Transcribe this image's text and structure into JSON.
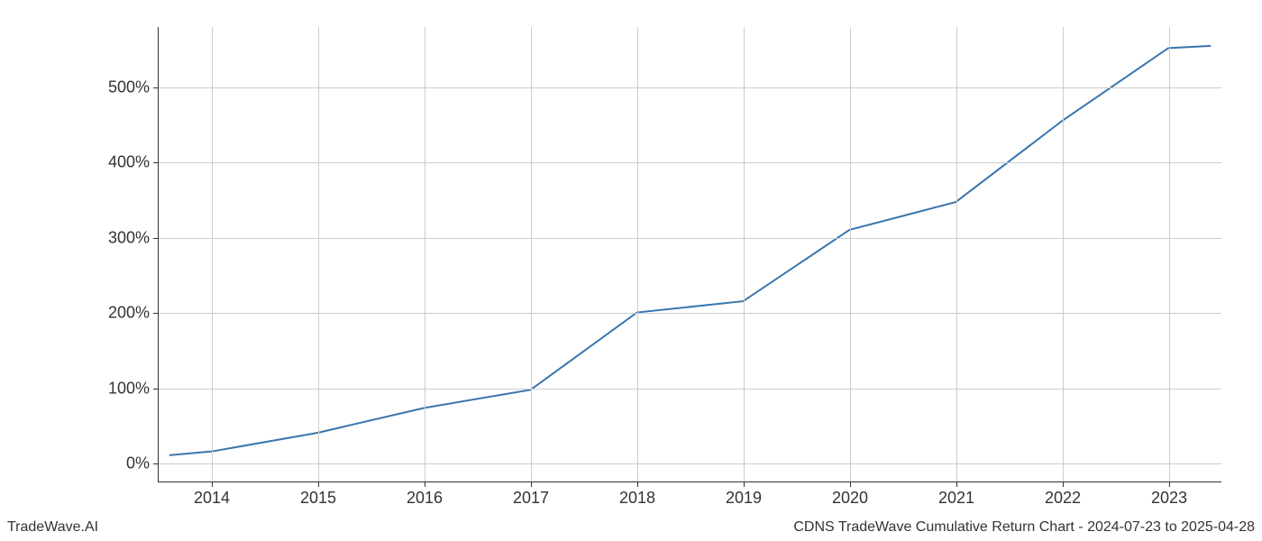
{
  "chart": {
    "type": "line",
    "x_values": [
      2013.6,
      2014,
      2015,
      2016,
      2017,
      2018,
      2019,
      2020,
      2021,
      2022,
      2023,
      2023.4
    ],
    "y_values": [
      10,
      15,
      40,
      73,
      97,
      200,
      215,
      310,
      347,
      455,
      552,
      555
    ],
    "x_ticks": [
      2014,
      2015,
      2016,
      2017,
      2018,
      2019,
      2020,
      2021,
      2022,
      2023
    ],
    "x_tick_labels": [
      "2014",
      "2015",
      "2016",
      "2017",
      "2018",
      "2019",
      "2020",
      "2021",
      "2022",
      "2023"
    ],
    "y_ticks": [
      0,
      100,
      200,
      300,
      400,
      500
    ],
    "y_tick_labels": [
      "0%",
      "100%",
      "200%",
      "300%",
      "400%",
      "500%"
    ],
    "xlim": [
      2013.5,
      2023.5
    ],
    "ylim": [
      -25,
      580
    ],
    "line_color": "#3a76ae",
    "line_width": 2,
    "grid_color": "#cccccc",
    "axis_color": "#333333",
    "background_color": "#ffffff",
    "tick_fontsize": 18,
    "footer_fontsize": 16
  },
  "footer": {
    "left": "TradeWave.AI",
    "right": "CDNS TradeWave Cumulative Return Chart - 2024-07-23 to 2025-04-28"
  }
}
